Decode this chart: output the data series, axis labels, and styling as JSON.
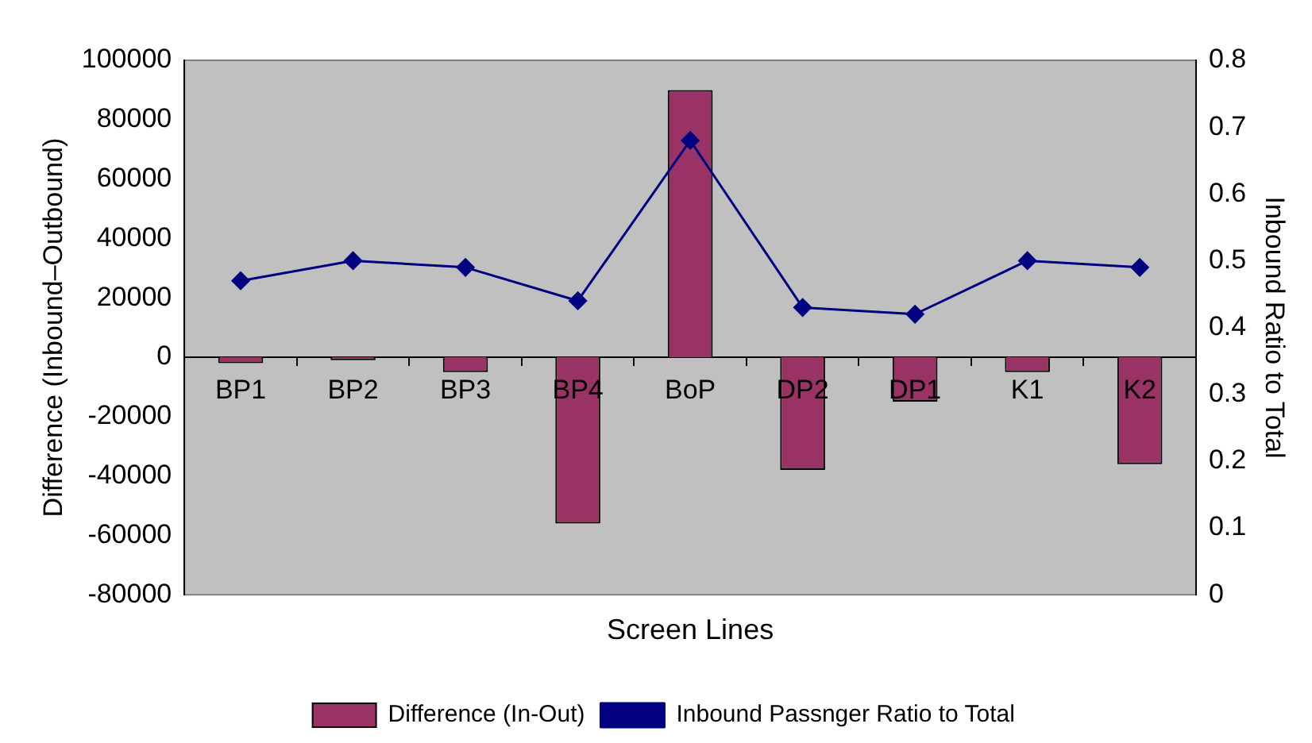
{
  "chart_data": {
    "type": "bar",
    "xlabel": "Screen Lines",
    "ylabel": "Difference (Inbound–Outbound)",
    "y2label": "Inbound Ratio to Total",
    "categories": [
      "BP1",
      "BP2",
      "BP3",
      "BP4",
      "BoP",
      "DP2",
      "DP1",
      "K1",
      "K2"
    ],
    "series": [
      {
        "name": "Difference (In-Out)",
        "color": "#993366",
        "values": [
          -2000,
          -1000,
          -5000,
          -56000,
          90000,
          -38000,
          -15000,
          -5000,
          -36000
        ]
      },
      {
        "name": "Inbound Passnger Ratio to Total",
        "type": "line",
        "axis": "y2",
        "color": "#000080",
        "values": [
          0.47,
          0.5,
          0.49,
          0.44,
          0.68,
          0.43,
          0.42,
          0.5,
          0.49
        ]
      }
    ],
    "ylim": [
      -80000,
      100000
    ],
    "yticks": [
      -80000,
      -60000,
      -40000,
      -20000,
      0,
      20000,
      40000,
      60000,
      80000,
      100000
    ],
    "y2lim": [
      0,
      0.8
    ],
    "y2ticks": [
      0,
      0.1,
      0.2,
      0.3,
      0.4,
      0.5,
      0.6,
      0.7,
      0.8
    ],
    "grid": false,
    "legend": "bottom",
    "marker": "diamond",
    "line_style": "solid"
  }
}
